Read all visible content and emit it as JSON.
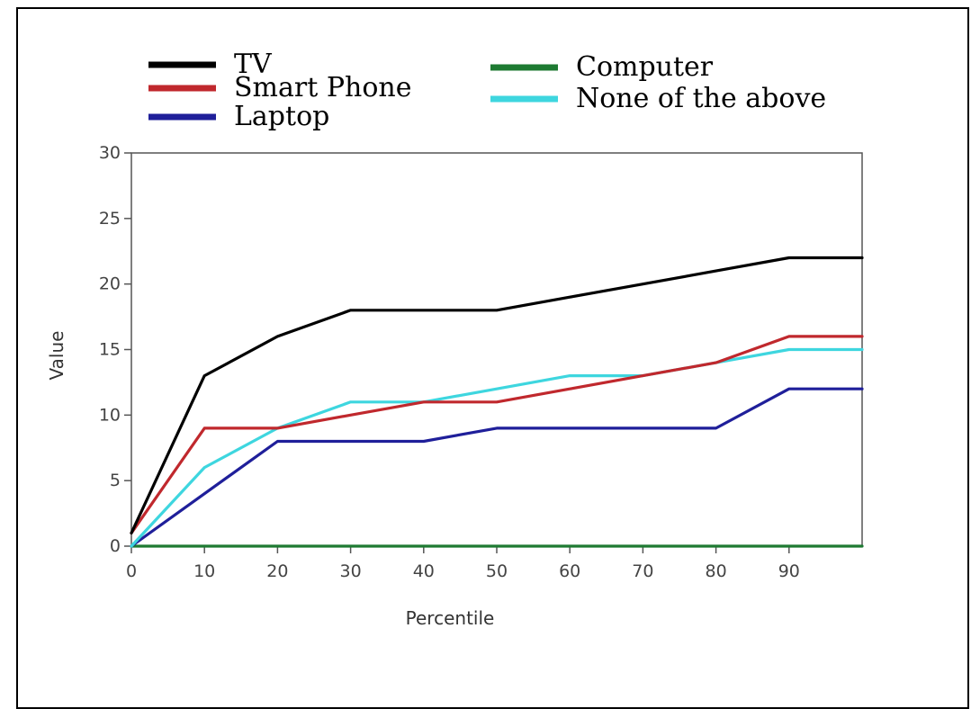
{
  "chart_data": {
    "type": "line",
    "xlabel": "Percentile",
    "ylabel": "Value",
    "xlim": [
      0,
      100
    ],
    "ylim": [
      0,
      30
    ],
    "x_ticks": [
      0,
      10,
      20,
      30,
      40,
      50,
      60,
      70,
      80,
      90
    ],
    "y_ticks": [
      0,
      5,
      10,
      15,
      20,
      25,
      30
    ],
    "grid": false,
    "legend_position": "top",
    "x": [
      0,
      10,
      20,
      30,
      40,
      50,
      60,
      70,
      80,
      90,
      100
    ],
    "series": [
      {
        "name": "TV",
        "color": "#000000",
        "values": [
          1,
          13,
          16,
          18,
          18,
          18,
          19,
          20,
          21,
          22,
          22
        ]
      },
      {
        "name": "Smart Phone",
        "color": "#c0282d",
        "values": [
          1,
          9,
          9,
          10,
          11,
          11,
          12,
          13,
          14,
          16,
          16
        ]
      },
      {
        "name": "Laptop",
        "color": "#1f1f9a",
        "values": [
          0,
          4,
          8,
          8,
          8,
          9,
          9,
          9,
          9,
          12,
          12
        ]
      },
      {
        "name": "Computer",
        "color": "#1e7a32",
        "values": [
          0,
          0,
          0,
          0,
          0,
          0,
          0,
          0,
          0,
          0,
          0
        ]
      },
      {
        "name": "None of the above",
        "color": "#3ed6df",
        "values": [
          0,
          6,
          9,
          11,
          11,
          12,
          13,
          13,
          14,
          15,
          15
        ]
      }
    ]
  }
}
